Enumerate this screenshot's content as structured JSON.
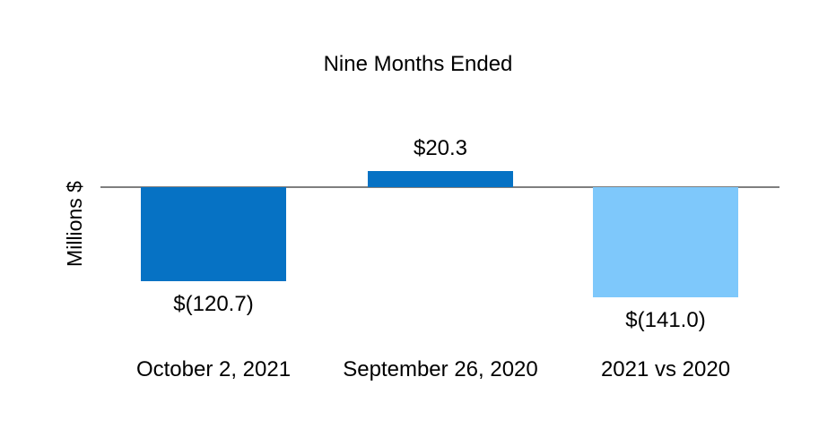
{
  "chart_data": {
    "type": "bar",
    "title": "Nine Months Ended",
    "ylabel": "Millions $",
    "xlabel": "",
    "categories": [
      "October 2, 2021",
      "September 26, 2020",
      "2021 vs 2020"
    ],
    "values": [
      -120.7,
      20.3,
      -141.0
    ],
    "data_labels": [
      "$(120.7)",
      "$20.3",
      "$(141.0)"
    ],
    "bar_colors": [
      "#0672C4",
      "#0672C4",
      "#7EC8FB"
    ],
    "colors": {
      "dark_blue": "#0672C4",
      "light_blue": "#7EC8FB",
      "axis_line": "#7F7F7F",
      "text": "#000000",
      "background": "#FFFFFF"
    },
    "layout": {
      "grid": false,
      "legend": false,
      "baseline": 0,
      "value_axis_ticks_hidden": true,
      "data_labels_position": "outside-end"
    }
  }
}
